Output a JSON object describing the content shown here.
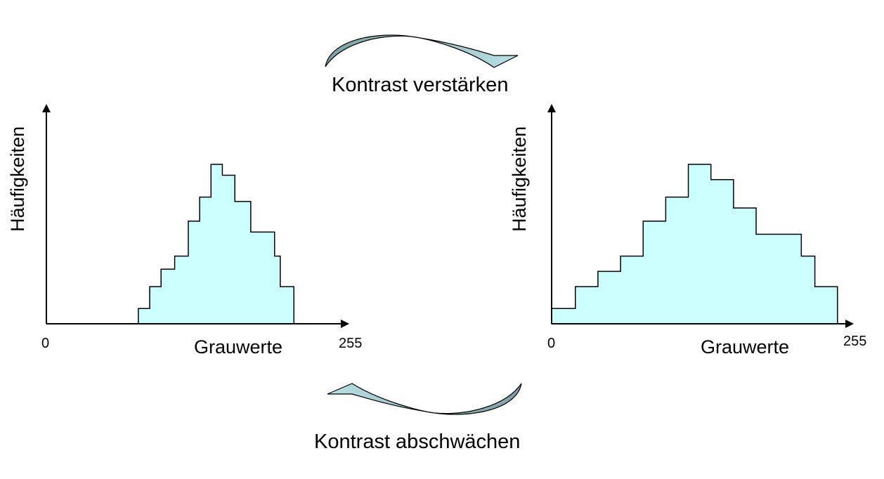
{
  "captions": {
    "top": "Kontrast verstärken",
    "bottom": "Kontrast abschwächen"
  },
  "colors": {
    "fill": "#ccffff",
    "arrow_dark": "#7fa0a0",
    "arrow_light": "#b8e0e6",
    "stroke": "#000000"
  },
  "histograms": [
    {
      "ylabel": "Häufigkeiten",
      "xlabel": "Grauwerte",
      "tick_min": "0",
      "tick_max": "255",
      "x_range": [
        0,
        255
      ],
      "edges": [
        81,
        91,
        101,
        113,
        125,
        135,
        145,
        155,
        166,
        180,
        201,
        206,
        218,
        231
      ],
      "heights": [
        0.07,
        0.17,
        0.25,
        0.31,
        0.47,
        0.58,
        0.73,
        0.68,
        0.56,
        0.42,
        0.31,
        0.17,
        0.0
      ]
    },
    {
      "ylabel": "Häufigkeiten",
      "xlabel": "Grauwerte",
      "tick_min": "0",
      "tick_max": "255",
      "x_range": [
        0,
        255
      ],
      "edges": [
        0,
        21,
        41,
        61,
        81,
        101,
        121,
        141,
        161,
        181,
        221,
        233,
        253
      ],
      "heights": [
        0.07,
        0.17,
        0.24,
        0.31,
        0.47,
        0.58,
        0.73,
        0.66,
        0.53,
        0.41,
        0.31,
        0.17
      ]
    }
  ]
}
